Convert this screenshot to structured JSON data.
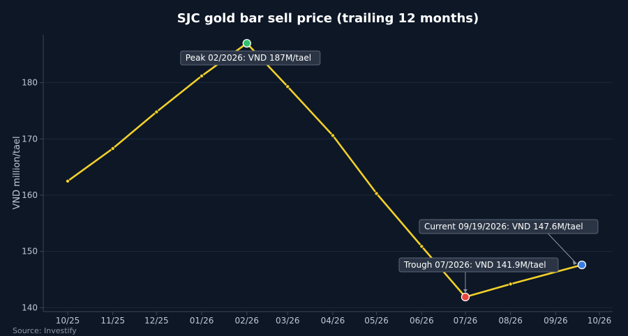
{
  "chart_data": {
    "type": "line",
    "title": "SJC gold bar sell price (trailing 12 months)",
    "xlabel": "",
    "ylabel": "VND million/tael",
    "x_ticks": [
      "10/25",
      "11/25",
      "12/25",
      "01/26",
      "02/26",
      "03/26",
      "04/26",
      "05/26",
      "06/26",
      "07/26",
      "08/26",
      "09/26",
      "10/26"
    ],
    "yticks": [
      140,
      150,
      160,
      170,
      180
    ],
    "ylim": [
      139.3,
      188.5
    ],
    "grid": "horizontal",
    "series": [
      {
        "color": "#f2d02a",
        "x": [
          "2025-10-01",
          "2025-11-01",
          "2025-12-01",
          "2026-01-01",
          "2026-02-01",
          "2026-03-01",
          "2026-04-01",
          "2026-05-01",
          "2026-06-01",
          "2026-07-01",
          "2026-08-01",
          "2026-09-19"
        ],
        "values": [
          162.5,
          168.3,
          174.8,
          181.2,
          187.0,
          179.3,
          170.6,
          160.3,
          150.9,
          141.9,
          144.2,
          147.6
        ]
      }
    ],
    "annotations": [
      {
        "text": "Peak 02/2026: VND 187M/tael",
        "point_index": 4,
        "marker_color": "#2fc26a"
      },
      {
        "text": "Trough 07/2026: VND 141.9M/tael",
        "point_index": 9,
        "marker_color": "#e8453c"
      },
      {
        "text": "Current 09/19/2026: VND 147.6M/tael",
        "point_index": 11,
        "marker_color": "#3a7be0"
      }
    ],
    "source": "Source: Investify"
  }
}
